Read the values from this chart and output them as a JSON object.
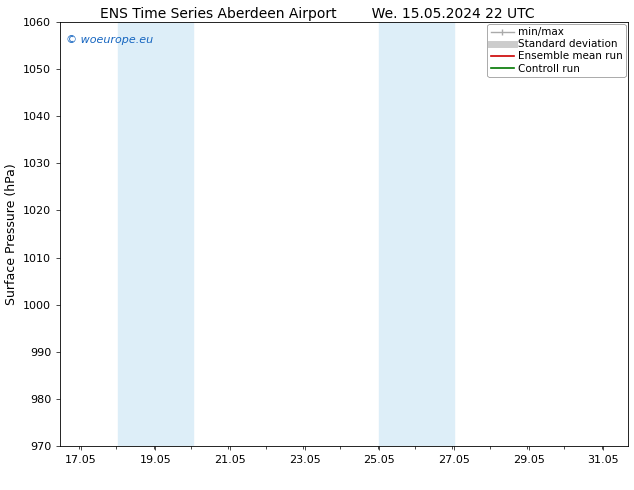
{
  "title_left": "ENS Time Series Aberdeen Airport",
  "title_right": "We. 15.05.2024 22 UTC",
  "ylabel": "Surface Pressure (hPa)",
  "ylim": [
    970,
    1060
  ],
  "yticks": [
    970,
    980,
    990,
    1000,
    1010,
    1020,
    1030,
    1040,
    1050,
    1060
  ],
  "xlim_start": 16.5,
  "xlim_end": 31.7,
  "xtick_labels": [
    "17.05",
    "19.05",
    "21.05",
    "23.05",
    "25.05",
    "27.05",
    "29.05",
    "31.05"
  ],
  "xtick_positions": [
    17.05,
    19.05,
    21.05,
    23.05,
    25.05,
    27.05,
    29.05,
    31.05
  ],
  "shaded_bands": [
    {
      "x_start": 18.05,
      "x_end": 20.05
    },
    {
      "x_start": 25.05,
      "x_end": 27.05
    }
  ],
  "band_color": "#ddeef8",
  "watermark_text": "© woeurope.eu",
  "watermark_color": "#1565C0",
  "legend_items": [
    {
      "label": "min/max",
      "color": "#aaaaaa",
      "lw": 1.0
    },
    {
      "label": "Standard deviation",
      "color": "#cccccc",
      "lw": 5
    },
    {
      "label": "Ensemble mean run",
      "color": "#cc0000",
      "lw": 1.2
    },
    {
      "label": "Controll run",
      "color": "#007700",
      "lw": 1.2
    }
  ],
  "bg_color": "#ffffff",
  "title_fontsize": 10,
  "tick_fontsize": 8,
  "ylabel_fontsize": 9,
  "watermark_fontsize": 8,
  "legend_fontsize": 7.5
}
